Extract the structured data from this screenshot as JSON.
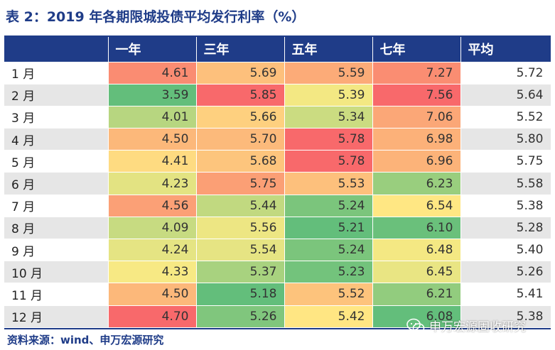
{
  "title": "表 2：2019 年各期限城投债平均发行利率（%）",
  "columns": [
    "",
    "一年",
    "三年",
    "五年",
    "七年",
    "平均"
  ],
  "rows": [
    {
      "month": "1 月",
      "y1": "4.61",
      "y3": "5.69",
      "y5": "5.59",
      "y7": "7.27",
      "avg": "5.72"
    },
    {
      "month": "2 月",
      "y1": "3.59",
      "y3": "5.85",
      "y5": "5.39",
      "y7": "7.56",
      "avg": "5.64"
    },
    {
      "month": "3 月",
      "y1": "4.01",
      "y3": "5.66",
      "y5": "5.34",
      "y7": "7.06",
      "avg": "5.52"
    },
    {
      "month": "4 月",
      "y1": "4.50",
      "y3": "5.70",
      "y5": "5.78",
      "y7": "6.98",
      "avg": "5.80"
    },
    {
      "month": "5 月",
      "y1": "4.41",
      "y3": "5.68",
      "y5": "5.78",
      "y7": "6.96",
      "avg": "5.75"
    },
    {
      "month": "6 月",
      "y1": "4.23",
      "y3": "5.75",
      "y5": "5.53",
      "y7": "6.23",
      "avg": "5.58"
    },
    {
      "month": "7 月",
      "y1": "4.56",
      "y3": "5.44",
      "y5": "5.24",
      "y7": "6.54",
      "avg": "5.38"
    },
    {
      "month": "8 月",
      "y1": "4.09",
      "y3": "5.56",
      "y5": "5.21",
      "y7": "6.10",
      "avg": "5.28"
    },
    {
      "month": "9 月",
      "y1": "4.24",
      "y3": "5.54",
      "y5": "5.24",
      "y7": "6.48",
      "avg": "5.40"
    },
    {
      "month": "10 月",
      "y1": "4.33",
      "y3": "5.37",
      "y5": "5.23",
      "y7": "6.45",
      "avg": "5.26"
    },
    {
      "month": "11 月",
      "y1": "4.50",
      "y3": "5.18",
      "y5": "5.52",
      "y7": "6.21",
      "avg": "5.41"
    },
    {
      "month": "12 月",
      "y1": "4.70",
      "y3": "5.26",
      "y5": "5.42",
      "y7": "6.08",
      "avg": "5.38"
    }
  ],
  "source": "资料来源：wind、申万宏源研究",
  "watermark": "申万宏源固收研究",
  "colors": {
    "header_bg": "#1f3c88",
    "scale_low": "#63be7b",
    "scale_mid": "#ffeb84",
    "scale_high": "#f8696b"
  }
}
